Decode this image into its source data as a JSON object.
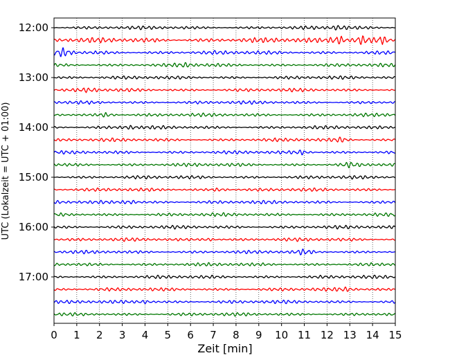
{
  "chart_data": {
    "type": "line",
    "title": "",
    "xlabel": "Zeit  [min]",
    "ylabel": "UTC (Lokalzeit = UTC + 01:00)",
    "xlim": [
      0,
      15
    ],
    "x_ticks": [
      0,
      1,
      2,
      3,
      4,
      5,
      6,
      7,
      8,
      9,
      10,
      11,
      12,
      13,
      14,
      15
    ],
    "x_grid": "vertical dotted",
    "y_ticks": [
      {
        "label": "12:00",
        "trace_index": 0
      },
      {
        "label": "13:00",
        "trace_index": 4
      },
      {
        "label": "14:00",
        "trace_index": 8
      },
      {
        "label": "15:00",
        "trace_index": 12
      },
      {
        "label": "16:00",
        "trace_index": 16
      },
      {
        "label": "17:00",
        "trace_index": 20
      }
    ],
    "trace_minutes": 15,
    "series_colors": [
      "#000000",
      "#ff0000",
      "#0000ff",
      "#007700"
    ],
    "traces": [
      {
        "start": "12:00",
        "color": "#000000",
        "amplitude": 0.3,
        "bursts": [
          {
            "x": 12.5,
            "amp": 0.25
          }
        ]
      },
      {
        "start": "12:15",
        "color": "#ff0000",
        "amplitude": 0.45,
        "bursts": [
          {
            "x": 12.5,
            "amp": 0.6
          },
          {
            "x": 13.5,
            "amp": 0.55
          },
          {
            "x": 14.4,
            "amp": 0.5
          }
        ]
      },
      {
        "start": "12:30",
        "color": "#0000ff",
        "amplitude": 0.35,
        "bursts": [
          {
            "x": 0.4,
            "amp": 0.45
          }
        ]
      },
      {
        "start": "12:45",
        "color": "#007700",
        "amplitude": 0.3,
        "bursts": [
          {
            "x": 5.8,
            "amp": 0.2
          }
        ]
      },
      {
        "start": "13:00",
        "color": "#000000",
        "amplitude": 0.3,
        "bursts": []
      },
      {
        "start": "13:15",
        "color": "#ff0000",
        "amplitude": 0.3,
        "bursts": [
          {
            "x": 1.6,
            "amp": 0.2
          }
        ]
      },
      {
        "start": "13:30",
        "color": "#0000ff",
        "amplitude": 0.3,
        "bursts": []
      },
      {
        "start": "13:45",
        "color": "#007700",
        "amplitude": 0.3,
        "bursts": [
          {
            "x": 2.3,
            "amp": 0.25
          }
        ]
      },
      {
        "start": "14:00",
        "color": "#000000",
        "amplitude": 0.3,
        "bursts": [
          {
            "x": 3.3,
            "amp": 0.2
          }
        ]
      },
      {
        "start": "14:15",
        "color": "#ff0000",
        "amplitude": 0.3,
        "bursts": [
          {
            "x": 12.6,
            "amp": 0.25
          }
        ]
      },
      {
        "start": "14:30",
        "color": "#0000ff",
        "amplitude": 0.3,
        "bursts": [
          {
            "x": 10.9,
            "amp": 0.25
          }
        ]
      },
      {
        "start": "14:45",
        "color": "#007700",
        "amplitude": 0.3,
        "bursts": [
          {
            "x": 13.0,
            "amp": 0.2
          }
        ]
      },
      {
        "start": "15:00",
        "color": "#000000",
        "amplitude": 0.3,
        "bursts": []
      },
      {
        "start": "15:15",
        "color": "#ff0000",
        "amplitude": 0.3,
        "bursts": [
          {
            "x": 7.3,
            "amp": 0.2
          }
        ]
      },
      {
        "start": "15:30",
        "color": "#0000ff",
        "amplitude": 0.3,
        "bursts": [
          {
            "x": 3.3,
            "amp": 0.25
          }
        ]
      },
      {
        "start": "15:45",
        "color": "#007700",
        "amplitude": 0.3,
        "bursts": []
      },
      {
        "start": "16:00",
        "color": "#000000",
        "amplitude": 0.3,
        "bursts": []
      },
      {
        "start": "16:15",
        "color": "#ff0000",
        "amplitude": 0.3,
        "bursts": [
          {
            "x": 6.8,
            "amp": 0.2
          }
        ]
      },
      {
        "start": "16:30",
        "color": "#0000ff",
        "amplitude": 0.3,
        "bursts": [
          {
            "x": 11.0,
            "amp": 0.25
          }
        ]
      },
      {
        "start": "16:45",
        "color": "#007700",
        "amplitude": 0.3,
        "bursts": []
      },
      {
        "start": "17:00",
        "color": "#000000",
        "amplitude": 0.3,
        "bursts": []
      },
      {
        "start": "17:15",
        "color": "#ff0000",
        "amplitude": 0.3,
        "bursts": [
          {
            "x": 12.9,
            "amp": 0.2
          }
        ]
      },
      {
        "start": "17:30",
        "color": "#0000ff",
        "amplitude": 0.3,
        "bursts": [
          {
            "x": 4.0,
            "amp": 0.2
          }
        ]
      },
      {
        "start": "17:45",
        "color": "#007700",
        "amplitude": 0.3,
        "bursts": []
      }
    ]
  }
}
